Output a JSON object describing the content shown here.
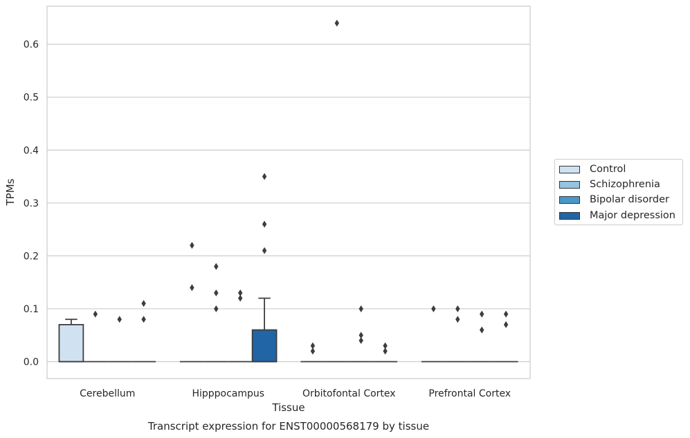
{
  "chart_data": {
    "type": "box",
    "title": "",
    "caption": "Transcript expression for ENST00000568179 by tissue",
    "xlabel": "Tissue",
    "ylabel": "TPMs",
    "ylim": [
      -0.032,
      0.672
    ],
    "yticks": [
      0.0,
      0.1,
      0.2,
      0.3,
      0.4,
      0.5,
      0.6
    ],
    "ytick_labels": [
      "0.0",
      "0.1",
      "0.2",
      "0.3",
      "0.4",
      "0.5",
      "0.6"
    ],
    "grid": "horizontal",
    "legend_position": "right",
    "categories": [
      "Cerebellum",
      "Hipppocampus",
      "Orbitofontal Cortex",
      "Prefrontal Cortex"
    ],
    "series": [
      {
        "name": "Control",
        "color": "#d0e1f2",
        "boxes": [
          {
            "q1": 0.0,
            "median": 0.0,
            "q3": 0.07,
            "whisker_low": 0.0,
            "whisker_high": 0.08,
            "outliers": []
          },
          {
            "q1": 0.0,
            "median": 0.0,
            "q3": 0.0,
            "whisker_low": 0.0,
            "whisker_high": 0.0,
            "outliers": [
              0.22,
              0.14
            ]
          },
          {
            "q1": 0.0,
            "median": 0.0,
            "q3": 0.0,
            "whisker_low": 0.0,
            "whisker_high": 0.0,
            "outliers": [
              0.03,
              0.02
            ]
          },
          {
            "q1": 0.0,
            "median": 0.0,
            "q3": 0.0,
            "whisker_low": 0.0,
            "whisker_high": 0.0,
            "outliers": [
              0.1
            ]
          }
        ]
      },
      {
        "name": "Schizophrenia",
        "color": "#94c4df",
        "boxes": [
          {
            "q1": 0.0,
            "median": 0.0,
            "q3": 0.0,
            "whisker_low": 0.0,
            "whisker_high": 0.0,
            "outliers": [
              0.09
            ]
          },
          {
            "q1": 0.0,
            "median": 0.0,
            "q3": 0.0,
            "whisker_low": 0.0,
            "whisker_high": 0.0,
            "outliers": [
              0.18,
              0.13,
              0.1
            ]
          },
          {
            "q1": 0.0,
            "median": 0.0,
            "q3": 0.0,
            "whisker_low": 0.0,
            "whisker_high": 0.0,
            "outliers": [
              0.64
            ]
          },
          {
            "q1": 0.0,
            "median": 0.0,
            "q3": 0.0,
            "whisker_low": 0.0,
            "whisker_high": 0.0,
            "outliers": [
              0.1,
              0.08
            ]
          }
        ]
      },
      {
        "name": "Bipolar disorder",
        "color": "#4a98c9",
        "boxes": [
          {
            "q1": 0.0,
            "median": 0.0,
            "q3": 0.0,
            "whisker_low": 0.0,
            "whisker_high": 0.0,
            "outliers": [
              0.08
            ]
          },
          {
            "q1": 0.0,
            "median": 0.0,
            "q3": 0.0,
            "whisker_low": 0.0,
            "whisker_high": 0.0,
            "outliers": [
              0.13,
              0.12
            ]
          },
          {
            "q1": 0.0,
            "median": 0.0,
            "q3": 0.0,
            "whisker_low": 0.0,
            "whisker_high": 0.0,
            "outliers": [
              0.1,
              0.05,
              0.04
            ]
          },
          {
            "q1": 0.0,
            "median": 0.0,
            "q3": 0.0,
            "whisker_low": 0.0,
            "whisker_high": 0.0,
            "outliers": [
              0.09,
              0.06
            ]
          }
        ]
      },
      {
        "name": "Major depression",
        "color": "#2165a6",
        "boxes": [
          {
            "q1": 0.0,
            "median": 0.0,
            "q3": 0.0,
            "whisker_low": 0.0,
            "whisker_high": 0.0,
            "outliers": [
              0.11,
              0.08
            ]
          },
          {
            "q1": 0.0,
            "median": 0.0,
            "q3": 0.06,
            "whisker_low": 0.0,
            "whisker_high": 0.12,
            "outliers": [
              0.35,
              0.26,
              0.21
            ]
          },
          {
            "q1": 0.0,
            "median": 0.0,
            "q3": 0.0,
            "whisker_low": 0.0,
            "whisker_high": 0.0,
            "outliers": [
              0.03,
              0.02
            ]
          },
          {
            "q1": 0.0,
            "median": 0.0,
            "q3": 0.0,
            "whisker_low": 0.0,
            "whisker_high": 0.0,
            "outliers": [
              0.09,
              0.07
            ]
          }
        ]
      }
    ]
  }
}
